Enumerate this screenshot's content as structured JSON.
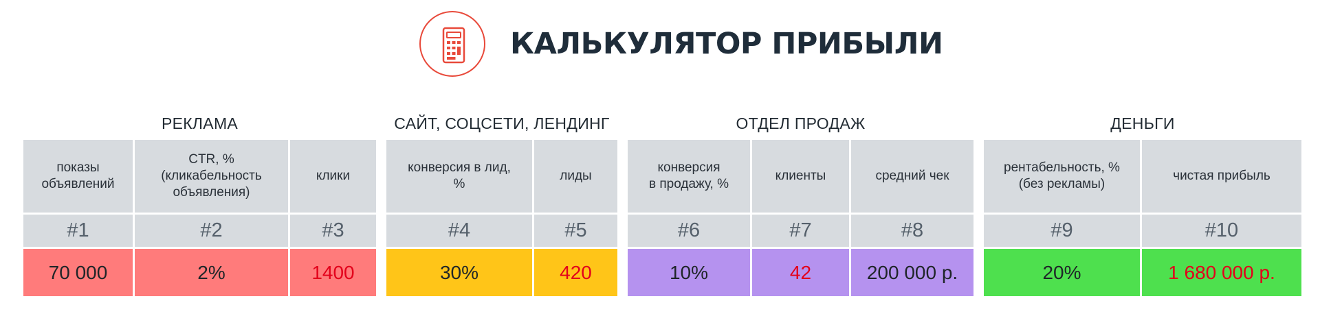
{
  "header": {
    "title": "КАЛЬКУЛЯТОР ПРИБЫЛИ",
    "icon": "calculator-icon",
    "accent_color": "#e8493a"
  },
  "groups": [
    {
      "title": "РЕКЛАМА",
      "color": "#ff7b7b",
      "columns": [
        {
          "label": "показы\nобъявлений",
          "num": "#1",
          "value": "70 000",
          "value_red": false
        },
        {
          "label": "CTR, %\n(кликабельность\nобъявления)",
          "num": "#2",
          "value": "2%",
          "value_red": false
        },
        {
          "label": "клики",
          "num": "#3",
          "value": "1400",
          "value_red": true
        }
      ]
    },
    {
      "title": "САЙТ, СОЦСЕТИ, ЛЕНДИНГ",
      "color": "#ffc518",
      "columns": [
        {
          "label": "конверсия в лид,\n%",
          "num": "#4",
          "value": "30%",
          "value_red": false
        },
        {
          "label": "лиды",
          "num": "#5",
          "value": "420",
          "value_red": true
        }
      ]
    },
    {
      "title": "ОТДЕЛ ПРОДАЖ",
      "color": "#b592ef",
      "columns": [
        {
          "label": "конверсия\nв продажу, %",
          "num": "#6",
          "value": "10%",
          "value_red": false
        },
        {
          "label": "клиенты",
          "num": "#7",
          "value": "42",
          "value_red": true
        },
        {
          "label": "средний чек",
          "num": "#8",
          "value": "200 000 р.",
          "value_red": false
        }
      ]
    },
    {
      "title": "ДЕНЬГИ",
      "color": "#4ee04e",
      "columns": [
        {
          "label": "рентабельность, %\n(без рекламы)",
          "num": "#9",
          "value": "20%",
          "value_red": false
        },
        {
          "label": "чистая прибыль",
          "num": "#10",
          "value": "1 680 000 р.",
          "value_red": true
        }
      ]
    }
  ]
}
